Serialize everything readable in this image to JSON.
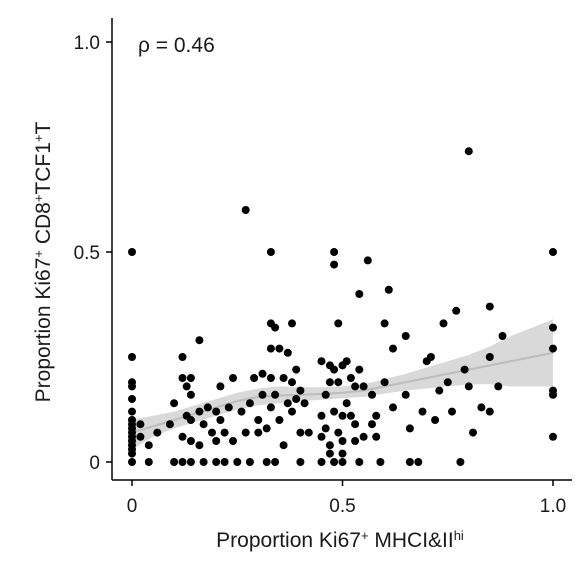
{
  "chart_data": {
    "type": "scatter",
    "title": "",
    "xlabel_parts": [
      "Proportion Ki67",
      "+",
      " MHCI&II",
      "hi"
    ],
    "ylabel_parts": [
      "Proportion Ki67",
      "+",
      " CD8",
      "+",
      "TCF1",
      "+",
      "T"
    ],
    "annotation": "ρ = 0.46",
    "xlim": [
      0,
      1
    ],
    "ylim": [
      0,
      1
    ],
    "x_ticks": [
      0,
      0.5,
      1.0
    ],
    "x_tick_labels": [
      "0",
      "0.5",
      "1.0"
    ],
    "y_ticks": [
      0,
      0.5,
      1.0
    ],
    "y_tick_labels": [
      "0",
      "0.5",
      "1.0"
    ],
    "grid": false,
    "point_color": "#000000",
    "smooth_line_color": "#bdbdbd",
    "smooth_band_color": "#d9d9d9",
    "smooth": {
      "x": [
        0.0,
        0.05,
        0.1,
        0.15,
        0.2,
        0.25,
        0.3,
        0.35,
        0.4,
        0.45,
        0.5,
        0.55,
        0.6,
        0.65,
        0.7,
        0.75,
        0.8,
        0.85,
        0.9,
        0.95,
        1.0
      ],
      "y": [
        0.07,
        0.085,
        0.1,
        0.115,
        0.13,
        0.145,
        0.155,
        0.158,
        0.16,
        0.162,
        0.165,
        0.17,
        0.18,
        0.19,
        0.2,
        0.21,
        0.22,
        0.23,
        0.24,
        0.25,
        0.26
      ],
      "lower": [
        0.03,
        0.06,
        0.08,
        0.095,
        0.11,
        0.125,
        0.135,
        0.14,
        0.145,
        0.148,
        0.152,
        0.155,
        0.163,
        0.17,
        0.175,
        0.18,
        0.185,
        0.185,
        0.18,
        0.18,
        0.18
      ],
      "upper": [
        0.1,
        0.11,
        0.12,
        0.135,
        0.15,
        0.165,
        0.175,
        0.18,
        0.178,
        0.178,
        0.18,
        0.185,
        0.197,
        0.21,
        0.225,
        0.24,
        0.255,
        0.275,
        0.3,
        0.32,
        0.34
      ]
    },
    "points": [
      {
        "x": 0.0,
        "y": 0.5
      },
      {
        "x": 0.0,
        "y": 0.25
      },
      {
        "x": 0.0,
        "y": 0.19
      },
      {
        "x": 0.0,
        "y": 0.18
      },
      {
        "x": 0.0,
        "y": 0.15
      },
      {
        "x": 0.0,
        "y": 0.12
      },
      {
        "x": 0.0,
        "y": 0.1
      },
      {
        "x": 0.0,
        "y": 0.09
      },
      {
        "x": 0.0,
        "y": 0.08
      },
      {
        "x": 0.0,
        "y": 0.07
      },
      {
        "x": 0.0,
        "y": 0.06
      },
      {
        "x": 0.0,
        "y": 0.05
      },
      {
        "x": 0.0,
        "y": 0.04
      },
      {
        "x": 0.0,
        "y": 0.03
      },
      {
        "x": 0.0,
        "y": 0.02
      },
      {
        "x": 0.0,
        "y": 0.0
      },
      {
        "x": 0.02,
        "y": 0.09
      },
      {
        "x": 0.02,
        "y": 0.06
      },
      {
        "x": 0.04,
        "y": 0.04
      },
      {
        "x": 0.04,
        "y": 0.0
      },
      {
        "x": 0.06,
        "y": 0.07
      },
      {
        "x": 0.09,
        "y": 0.09
      },
      {
        "x": 0.1,
        "y": 0.14
      },
      {
        "x": 0.1,
        "y": 0.0
      },
      {
        "x": 0.12,
        "y": 0.25
      },
      {
        "x": 0.12,
        "y": 0.2
      },
      {
        "x": 0.12,
        "y": 0.06
      },
      {
        "x": 0.12,
        "y": 0.0
      },
      {
        "x": 0.13,
        "y": 0.18
      },
      {
        "x": 0.13,
        "y": 0.11
      },
      {
        "x": 0.14,
        "y": 0.2
      },
      {
        "x": 0.14,
        "y": 0.16
      },
      {
        "x": 0.14,
        "y": 0.1
      },
      {
        "x": 0.14,
        "y": 0.05
      },
      {
        "x": 0.14,
        "y": 0.0
      },
      {
        "x": 0.16,
        "y": 0.29
      },
      {
        "x": 0.16,
        "y": 0.12
      },
      {
        "x": 0.16,
        "y": 0.04
      },
      {
        "x": 0.17,
        "y": 0.09
      },
      {
        "x": 0.17,
        "y": 0.0
      },
      {
        "x": 0.18,
        "y": 0.13
      },
      {
        "x": 0.19,
        "y": 0.07
      },
      {
        "x": 0.2,
        "y": 0.12
      },
      {
        "x": 0.2,
        "y": 0.05
      },
      {
        "x": 0.2,
        "y": 0.0
      },
      {
        "x": 0.21,
        "y": 0.18
      },
      {
        "x": 0.21,
        "y": 0.1
      },
      {
        "x": 0.22,
        "y": 0.07
      },
      {
        "x": 0.22,
        "y": 0.0
      },
      {
        "x": 0.23,
        "y": 0.13
      },
      {
        "x": 0.24,
        "y": 0.2
      },
      {
        "x": 0.24,
        "y": 0.05
      },
      {
        "x": 0.25,
        "y": 0.0
      },
      {
        "x": 0.26,
        "y": 0.12
      },
      {
        "x": 0.27,
        "y": 0.07
      },
      {
        "x": 0.27,
        "y": 0.6
      },
      {
        "x": 0.28,
        "y": 0.14
      },
      {
        "x": 0.28,
        "y": 0.0
      },
      {
        "x": 0.29,
        "y": 0.2
      },
      {
        "x": 0.3,
        "y": 0.1
      },
      {
        "x": 0.3,
        "y": 0.07
      },
      {
        "x": 0.31,
        "y": 0.16
      },
      {
        "x": 0.31,
        "y": 0.21
      },
      {
        "x": 0.32,
        "y": 0.0
      },
      {
        "x": 0.32,
        "y": 0.08
      },
      {
        "x": 0.33,
        "y": 0.5
      },
      {
        "x": 0.33,
        "y": 0.33
      },
      {
        "x": 0.33,
        "y": 0.27
      },
      {
        "x": 0.33,
        "y": 0.2
      },
      {
        "x": 0.33,
        "y": 0.13
      },
      {
        "x": 0.34,
        "y": 0.32
      },
      {
        "x": 0.34,
        "y": 0.16
      },
      {
        "x": 0.34,
        "y": 0.0
      },
      {
        "x": 0.35,
        "y": 0.27
      },
      {
        "x": 0.35,
        "y": 0.1
      },
      {
        "x": 0.36,
        "y": 0.2
      },
      {
        "x": 0.36,
        "y": 0.04
      },
      {
        "x": 0.37,
        "y": 0.14
      },
      {
        "x": 0.37,
        "y": 0.26
      },
      {
        "x": 0.38,
        "y": 0.33
      },
      {
        "x": 0.38,
        "y": 0.19
      },
      {
        "x": 0.38,
        "y": 0.12
      },
      {
        "x": 0.39,
        "y": 0.22
      },
      {
        "x": 0.39,
        "y": 0.15
      },
      {
        "x": 0.4,
        "y": 0.17
      },
      {
        "x": 0.4,
        "y": 0.07
      },
      {
        "x": 0.4,
        "y": 0.0
      },
      {
        "x": 0.41,
        "y": 0.14
      },
      {
        "x": 0.42,
        "y": 0.07
      },
      {
        "x": 0.45,
        "y": 0.24
      },
      {
        "x": 0.45,
        "y": 0.11
      },
      {
        "x": 0.45,
        "y": 0.06
      },
      {
        "x": 0.45,
        "y": 0.0
      },
      {
        "x": 0.46,
        "y": 0.16
      },
      {
        "x": 0.46,
        "y": 0.08
      },
      {
        "x": 0.47,
        "y": 0.23
      },
      {
        "x": 0.47,
        "y": 0.19
      },
      {
        "x": 0.47,
        "y": 0.04
      },
      {
        "x": 0.47,
        "y": 0.02
      },
      {
        "x": 0.48,
        "y": 0.5
      },
      {
        "x": 0.48,
        "y": 0.47
      },
      {
        "x": 0.48,
        "y": 0.22
      },
      {
        "x": 0.48,
        "y": 0.12
      },
      {
        "x": 0.48,
        "y": 0.0
      },
      {
        "x": 0.49,
        "y": 0.33
      },
      {
        "x": 0.49,
        "y": 0.19
      },
      {
        "x": 0.49,
        "y": 0.07
      },
      {
        "x": 0.5,
        "y": 0.23
      },
      {
        "x": 0.5,
        "y": 0.11
      },
      {
        "x": 0.5,
        "y": 0.05
      },
      {
        "x": 0.5,
        "y": 0.02
      },
      {
        "x": 0.5,
        "y": 0.0
      },
      {
        "x": 0.51,
        "y": 0.24
      },
      {
        "x": 0.51,
        "y": 0.14
      },
      {
        "x": 0.52,
        "y": 0.2
      },
      {
        "x": 0.52,
        "y": 0.11
      },
      {
        "x": 0.53,
        "y": 0.18
      },
      {
        "x": 0.53,
        "y": 0.09
      },
      {
        "x": 0.53,
        "y": 0.05
      },
      {
        "x": 0.54,
        "y": 0.4
      },
      {
        "x": 0.54,
        "y": 0.22
      },
      {
        "x": 0.54,
        "y": 0.0
      },
      {
        "x": 0.55,
        "y": 0.18
      },
      {
        "x": 0.55,
        "y": 0.06
      },
      {
        "x": 0.56,
        "y": 0.48
      },
      {
        "x": 0.57,
        "y": 0.16
      },
      {
        "x": 0.57,
        "y": 0.09
      },
      {
        "x": 0.58,
        "y": 0.11
      },
      {
        "x": 0.58,
        "y": 0.06
      },
      {
        "x": 0.59,
        "y": 0.0
      },
      {
        "x": 0.6,
        "y": 0.33
      },
      {
        "x": 0.6,
        "y": 0.19
      },
      {
        "x": 0.61,
        "y": 0.41
      },
      {
        "x": 0.62,
        "y": 0.27
      },
      {
        "x": 0.62,
        "y": 0.13
      },
      {
        "x": 0.65,
        "y": 0.3
      },
      {
        "x": 0.65,
        "y": 0.16
      },
      {
        "x": 0.66,
        "y": 0.08
      },
      {
        "x": 0.66,
        "y": 0.0
      },
      {
        "x": 0.68,
        "y": 0.0
      },
      {
        "x": 0.69,
        "y": 0.12
      },
      {
        "x": 0.7,
        "y": 0.24
      },
      {
        "x": 0.71,
        "y": 0.25
      },
      {
        "x": 0.72,
        "y": 0.1
      },
      {
        "x": 0.73,
        "y": 0.17
      },
      {
        "x": 0.74,
        "y": 0.33
      },
      {
        "x": 0.75,
        "y": 0.19
      },
      {
        "x": 0.76,
        "y": 0.12
      },
      {
        "x": 0.77,
        "y": 0.36
      },
      {
        "x": 0.78,
        "y": 0.0
      },
      {
        "x": 0.79,
        "y": 0.22
      },
      {
        "x": 0.8,
        "y": 0.74
      },
      {
        "x": 0.8,
        "y": 0.18
      },
      {
        "x": 0.81,
        "y": 0.07
      },
      {
        "x": 0.83,
        "y": 0.13
      },
      {
        "x": 0.85,
        "y": 0.37
      },
      {
        "x": 0.85,
        "y": 0.25
      },
      {
        "x": 0.85,
        "y": 0.12
      },
      {
        "x": 0.87,
        "y": 0.18
      },
      {
        "x": 0.88,
        "y": 0.3
      },
      {
        "x": 1.0,
        "y": 0.5
      },
      {
        "x": 1.0,
        "y": 0.32
      },
      {
        "x": 1.0,
        "y": 0.27
      },
      {
        "x": 1.0,
        "y": 0.17
      },
      {
        "x": 1.0,
        "y": 0.16
      },
      {
        "x": 1.0,
        "y": 0.06
      }
    ]
  }
}
